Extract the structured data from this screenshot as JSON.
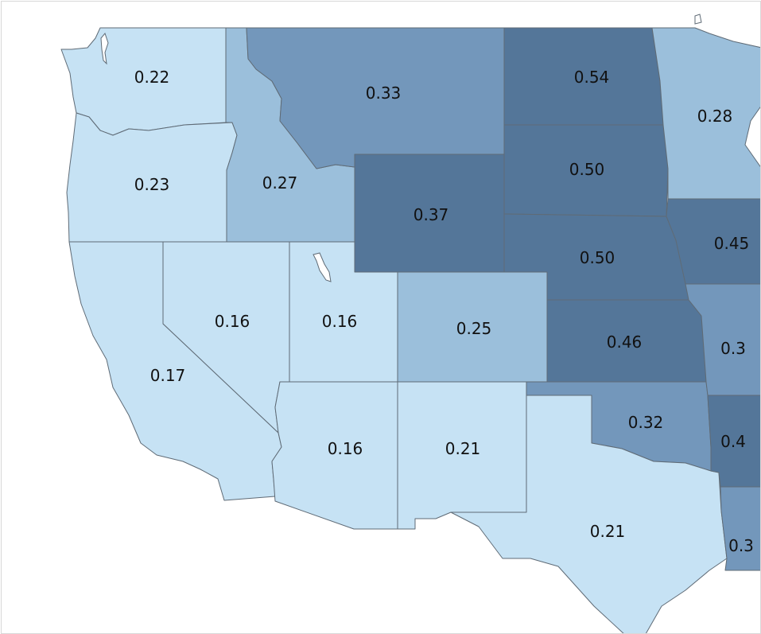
{
  "chart_data": {
    "type": "choropleth",
    "legend": "none",
    "color_scale": {
      "0.16-0.23": "#c6e2f4",
      "0.25-0.28": "#9bbfdb",
      "0.32-0.35": "#7397bb",
      "0.37-0.54": "#547699"
    },
    "regions": [
      {
        "id": "WA",
        "value": "0.22"
      },
      {
        "id": "OR",
        "value": "0.23"
      },
      {
        "id": "CA",
        "value": "0.17"
      },
      {
        "id": "NV",
        "value": "0.16"
      },
      {
        "id": "ID",
        "value": "0.27"
      },
      {
        "id": "MT",
        "value": "0.33"
      },
      {
        "id": "WY",
        "value": "0.37"
      },
      {
        "id": "UT",
        "value": "0.16"
      },
      {
        "id": "AZ",
        "value": "0.16"
      },
      {
        "id": "CO",
        "value": "0.25"
      },
      {
        "id": "NM",
        "value": "0.21"
      },
      {
        "id": "ND",
        "value": "0.54"
      },
      {
        "id": "SD",
        "value": "0.50"
      },
      {
        "id": "NE",
        "value": "0.50"
      },
      {
        "id": "KS",
        "value": "0.46"
      },
      {
        "id": "OK",
        "value": "0.32"
      },
      {
        "id": "TX",
        "value": "0.21"
      },
      {
        "id": "MN",
        "value": "0.28"
      },
      {
        "id": "IA",
        "value": "0.45"
      },
      {
        "id": "MO",
        "value": "0.3"
      },
      {
        "id": "AR",
        "value": "0.4"
      },
      {
        "id": "LA",
        "value": "0.3"
      }
    ]
  }
}
